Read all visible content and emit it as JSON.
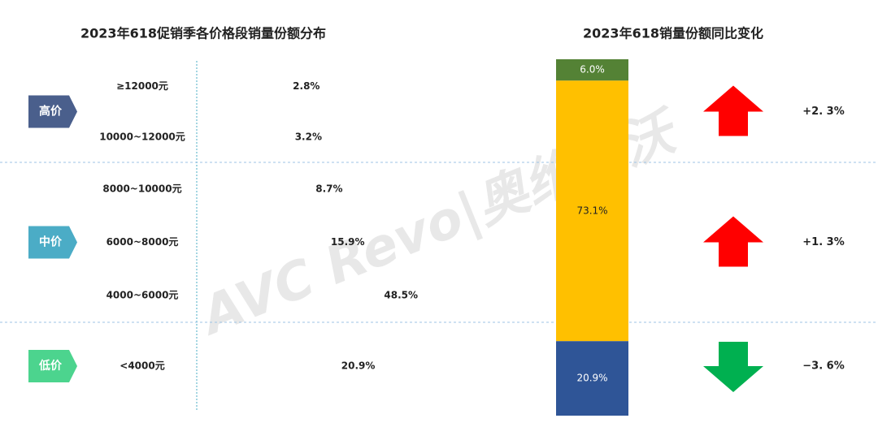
{
  "chart_data": [
    {
      "type": "bar",
      "title": "2023年618促销季各价格段销量份额分布",
      "groups": [
        {
          "label": "高价",
          "color": "#4a5f8c",
          "categories": [
            "≥12000元",
            "10000~12000元"
          ],
          "values": [
            2.8,
            3.2
          ],
          "value_labels": [
            "2.8%",
            "3.2%"
          ]
        },
        {
          "label": "中价",
          "color": "#4bacc6",
          "categories": [
            "8000~10000元",
            "6000~8000元",
            "4000~6000元"
          ],
          "values": [
            8.7,
            15.9,
            48.5
          ],
          "value_labels": [
            "8.7%",
            "15.9%",
            "48.5%"
          ]
        },
        {
          "label": "低价",
          "color": "#4cd48e",
          "categories": [
            "<4000元"
          ],
          "values": [
            20.9
          ],
          "value_labels": [
            "20.9%"
          ]
        }
      ]
    },
    {
      "type": "stacked-bar",
      "title": "2023年618销量份额同比变化",
      "values": [
        6.0,
        73.1,
        20.9
      ],
      "value_labels": [
        "6.0%",
        "73.1%",
        "20.9%"
      ],
      "colors": [
        "#548235",
        "#ffc000",
        "#2f5597"
      ],
      "label_colors": [
        "#ffffff",
        "#222222",
        "#ffffff"
      ],
      "changes": [
        2.3,
        1.3,
        -3.6
      ],
      "change_labels": [
        "+2. 3%",
        "+1. 3%",
        "−3. 6%"
      ],
      "up_color": "#ff0000",
      "down_color": "#00b050"
    }
  ],
  "watermark": "AVC Revo|奥维睿沃"
}
